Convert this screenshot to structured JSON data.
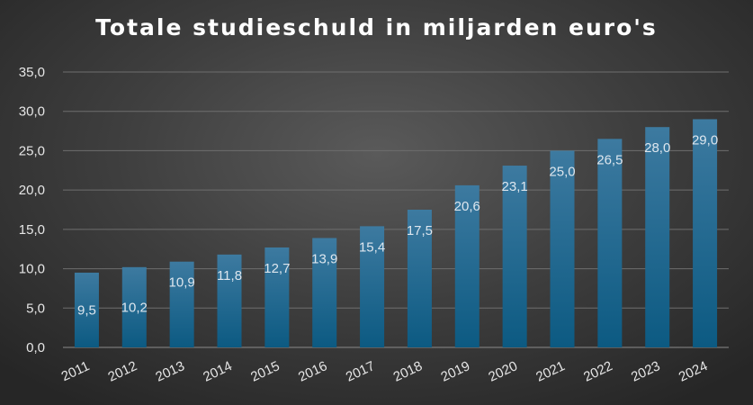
{
  "chart_data": {
    "type": "bar",
    "title": "Totale studieschuld in miljarden euro's",
    "categories": [
      "2011",
      "2012",
      "2013",
      "2014",
      "2015",
      "2016",
      "2017",
      "2018",
      "2019",
      "2020",
      "2021",
      "2022",
      "2023",
      "2024"
    ],
    "values": [
      9.5,
      10.2,
      10.9,
      11.8,
      12.7,
      13.9,
      15.4,
      17.5,
      20.6,
      23.1,
      25.0,
      26.5,
      28.0,
      29.0
    ],
    "data_labels": [
      "9,5",
      "10,2",
      "10,9",
      "11,8",
      "12,7",
      "13,9",
      "15,4",
      "17,5",
      "20,6",
      "23,1",
      "25,0",
      "26,5",
      "28,0",
      "29,0"
    ],
    "y_ticks": [
      0,
      5,
      10,
      15,
      20,
      25,
      30,
      35
    ],
    "y_tick_labels": [
      "0,0",
      "5,0",
      "10,0",
      "15,0",
      "20,0",
      "25,0",
      "30,0",
      "35,0"
    ],
    "ylim": [
      0,
      35
    ],
    "xlabel": "",
    "ylabel": "",
    "grid": true,
    "legend": "none",
    "colors": {
      "bar_top": "#3d7aa0",
      "bar_bottom": "#0c5a82",
      "background": "#3e3e3e"
    }
  }
}
